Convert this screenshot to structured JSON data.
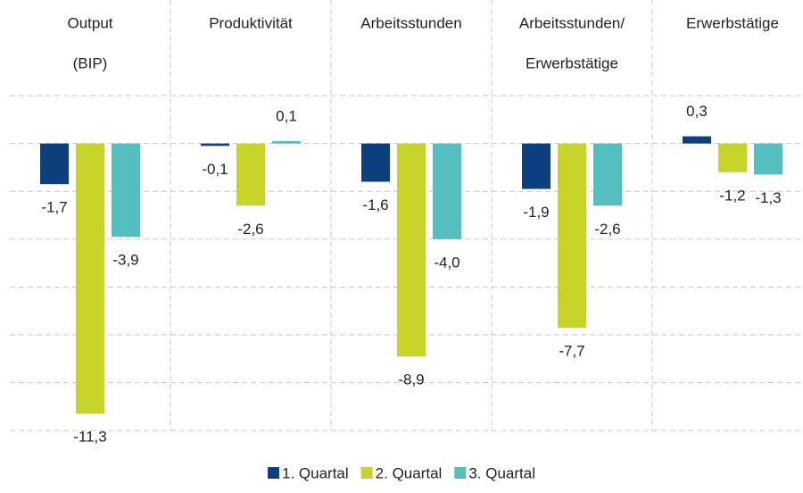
{
  "chart_data": {
    "type": "bar",
    "categories": [
      [
        "Output",
        "(BIP)"
      ],
      [
        "Produktivität"
      ],
      [
        "Arbeitsstunden"
      ],
      [
        "Arbeitsstunden/",
        "Erwerbstätige"
      ],
      [
        "Erwerbstätige"
      ]
    ],
    "series": [
      {
        "name": "1. Quartal",
        "color": "#0d3f7f",
        "values": [
          -1.7,
          -0.1,
          -1.6,
          -1.9,
          0.3
        ],
        "value_labels": [
          "-1,7",
          "-0,1",
          "-1,6",
          "-1,9",
          "0,3"
        ]
      },
      {
        "name": "2. Quartal",
        "color": "#c8d42a",
        "values": [
          -11.3,
          -2.6,
          -8.9,
          -7.7,
          -1.2
        ],
        "value_labels": [
          "-11,3",
          "-2,6",
          "-8,9",
          "-7,7",
          "-1,2"
        ]
      },
      {
        "name": "3. Quartal",
        "color": "#55bfc0",
        "values": [
          -3.9,
          0.1,
          -4.0,
          -2.6,
          -1.3
        ],
        "value_labels": [
          "-3,9",
          "0,1",
          "-4,0",
          "-2,6",
          "-1,3"
        ]
      }
    ],
    "ylim": [
      -12,
      6
    ],
    "yticks": [
      -12,
      -10,
      -8,
      -6,
      -4,
      -2,
      0,
      2
    ],
    "grid": true,
    "legend": "bottom"
  }
}
